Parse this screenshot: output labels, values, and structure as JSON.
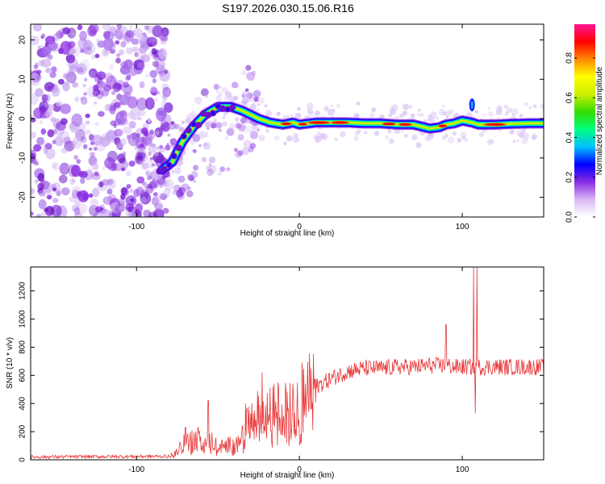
{
  "title": "S197.2026.030.15.06.R16",
  "colors": {
    "signal": "#e8393a",
    "blob": "#7a1fd6",
    "blob_light": "#c8a8f0",
    "axis": "#000000"
  },
  "chart_data": [
    {
      "type": "heatmap",
      "name": "spectrogram",
      "xlabel": "Height of straight line (km)",
      "ylabel": "Frequency (Hz)",
      "xlim": [
        -165,
        150
      ],
      "ylim": [
        -25,
        24
      ],
      "xticks": [
        -100,
        0,
        100
      ],
      "xtick_labels": [
        "-100",
        "0",
        "100"
      ],
      "yticks": [
        -20,
        -10,
        0,
        10,
        20
      ],
      "ytick_labels": [
        "-20",
        "-10",
        "0",
        "10",
        "20"
      ],
      "ridge": {
        "x": [
          -84,
          -78,
          -72,
          -65,
          -58,
          -50,
          -42,
          -35,
          -25,
          -18,
          -10,
          -4,
          0,
          10,
          20,
          30,
          40,
          50,
          60,
          70,
          80,
          86,
          90,
          95,
          100,
          106,
          110,
          120,
          130,
          140,
          150
        ],
        "y": [
          -13,
          -11,
          -6,
          -2,
          1,
          3,
          3,
          2,
          0,
          -1,
          -1.5,
          -1,
          -1.5,
          -1,
          -1,
          -1,
          -1.2,
          -1.2,
          -1.5,
          -1.5,
          -2.5,
          -2.2,
          -1.5,
          -1.2,
          -0.5,
          -1,
          -1.5,
          -1.5,
          -1.3,
          -1.2,
          -1.2
        ]
      },
      "colorbar": {
        "label": "Normalized spectral amplitude",
        "range": [
          0,
          0.97
        ],
        "ticks": [
          0.0,
          0.2,
          0.4,
          0.6,
          0.8
        ],
        "tick_labels": [
          "0.0",
          "0.2",
          "0.4",
          "0.6",
          "0.8"
        ],
        "colormap": [
          "#ffffff",
          "#d9b8f5",
          "#8a2be2",
          "#0000ff",
          "#00bfff",
          "#00ff80",
          "#33dd00",
          "#ccee00",
          "#ffff00",
          "#ff8800",
          "#ff0000",
          "#ff1493"
        ]
      }
    },
    {
      "type": "line",
      "name": "snr",
      "xlabel": "Height of straight line (km)",
      "ylabel": "SNR (10 * v/v)",
      "xlim": [
        -165,
        150
      ],
      "ylim": [
        0,
        1370
      ],
      "xticks": [
        -100,
        0,
        100
      ],
      "xtick_labels": [
        "-100",
        "0",
        "100"
      ],
      "yticks": [
        0,
        200,
        400,
        600,
        800,
        1000,
        1200
      ],
      "ytick_labels": [
        "0",
        "200",
        "400",
        "600",
        "800",
        "1000",
        "1200"
      ],
      "series": [
        {
          "name": "SNR",
          "envelope": {
            "x": [
              -165,
              -80,
              -75,
              -70,
              -65,
              -60,
              -55,
              -50,
              -45,
              -40,
              -35,
              -30,
              -25,
              -20,
              -15,
              -10,
              -5,
              0,
              10,
              20,
              30,
              40,
              50,
              60,
              70,
              80,
              85,
              90,
              95,
              100,
              105,
              110,
              115,
              120,
              130,
              140,
              150
            ],
            "y": [
              20,
              25,
              60,
              130,
              140,
              170,
              150,
              90,
              100,
              120,
              200,
              260,
              330,
              320,
              360,
              380,
              420,
              450,
              520,
              580,
              630,
              650,
              650,
              660,
              660,
              670,
              670,
              670,
              660,
              660,
              660,
              660,
              660,
              660,
              660,
              660,
              660
            ]
          },
          "spikes": [
            {
              "x": -70,
              "y": 230
            },
            {
              "x": -56,
              "y": 420
            },
            {
              "x": -33,
              "y": 400
            },
            {
              "x": -23,
              "y": 620
            },
            {
              "x": 90,
              "y": 960
            },
            {
              "x": 107,
              "y": 1370
            },
            {
              "x": 109,
              "y": 1370
            },
            {
              "x": 108,
              "y": 330
            }
          ]
        }
      ]
    }
  ]
}
